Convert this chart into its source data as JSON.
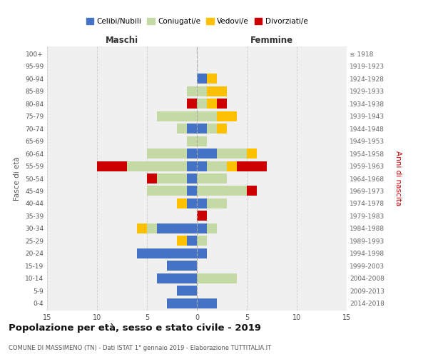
{
  "age_groups": [
    "0-4",
    "5-9",
    "10-14",
    "15-19",
    "20-24",
    "25-29",
    "30-34",
    "35-39",
    "40-44",
    "45-49",
    "50-54",
    "55-59",
    "60-64",
    "65-69",
    "70-74",
    "75-79",
    "80-84",
    "85-89",
    "90-94",
    "95-99",
    "100+"
  ],
  "birth_years": [
    "2014-2018",
    "2009-2013",
    "2004-2008",
    "1999-2003",
    "1994-1998",
    "1989-1993",
    "1984-1988",
    "1979-1983",
    "1974-1978",
    "1969-1973",
    "1964-1968",
    "1959-1963",
    "1954-1958",
    "1949-1953",
    "1944-1948",
    "1939-1943",
    "1934-1938",
    "1929-1933",
    "1924-1928",
    "1919-1923",
    "≤ 1918"
  ],
  "maschi": {
    "celibi": [
      3,
      2,
      4,
      3,
      6,
      1,
      4,
      0,
      1,
      1,
      1,
      1,
      1,
      0,
      1,
      0,
      0,
      0,
      0,
      0,
      0
    ],
    "coniugati": [
      0,
      0,
      0,
      0,
      0,
      0,
      1,
      0,
      0,
      4,
      3,
      6,
      4,
      1,
      1,
      4,
      0,
      1,
      0,
      0,
      0
    ],
    "vedovi": [
      0,
      0,
      0,
      0,
      0,
      1,
      1,
      0,
      1,
      0,
      0,
      0,
      0,
      0,
      0,
      0,
      0,
      0,
      0,
      0,
      0
    ],
    "divorziati": [
      0,
      0,
      0,
      0,
      0,
      0,
      0,
      0,
      0,
      0,
      1,
      3,
      0,
      0,
      0,
      0,
      1,
      0,
      0,
      0,
      0
    ]
  },
  "femmine": {
    "nubili": [
      2,
      0,
      0,
      0,
      1,
      0,
      1,
      0,
      1,
      0,
      0,
      1,
      2,
      0,
      1,
      0,
      0,
      0,
      1,
      0,
      0
    ],
    "coniugate": [
      0,
      0,
      4,
      0,
      0,
      1,
      1,
      0,
      2,
      5,
      3,
      2,
      3,
      1,
      1,
      2,
      1,
      1,
      0,
      0,
      0
    ],
    "vedove": [
      0,
      0,
      0,
      0,
      0,
      0,
      0,
      0,
      0,
      0,
      0,
      1,
      1,
      0,
      1,
      2,
      1,
      2,
      1,
      0,
      0
    ],
    "divorziate": [
      0,
      0,
      0,
      0,
      0,
      0,
      0,
      1,
      0,
      1,
      0,
      3,
      0,
      0,
      0,
      0,
      1,
      0,
      0,
      0,
      0
    ]
  },
  "colors": {
    "celibi": "#4472c4",
    "coniugati": "#c5d9a4",
    "vedovi": "#ffc000",
    "divorziati": "#cc0000"
  },
  "xlim": 15,
  "title": "Popolazione per età, sesso e stato civile - 2019",
  "subtitle": "COMUNE DI MASSIMENO (TN) - Dati ISTAT 1° gennaio 2019 - Elaborazione TUTTITALIA.IT",
  "ylabel_left": "Fasce di età",
  "ylabel_right": "Anni di nascita",
  "xlabel_maschi": "Maschi",
  "xlabel_femmine": "Femmine",
  "legend_labels": [
    "Celibi/Nubili",
    "Coniugati/e",
    "Vedovi/e",
    "Divorziati/e"
  ],
  "background_color": "#ffffff",
  "plot_bg": "#f0f0f0"
}
